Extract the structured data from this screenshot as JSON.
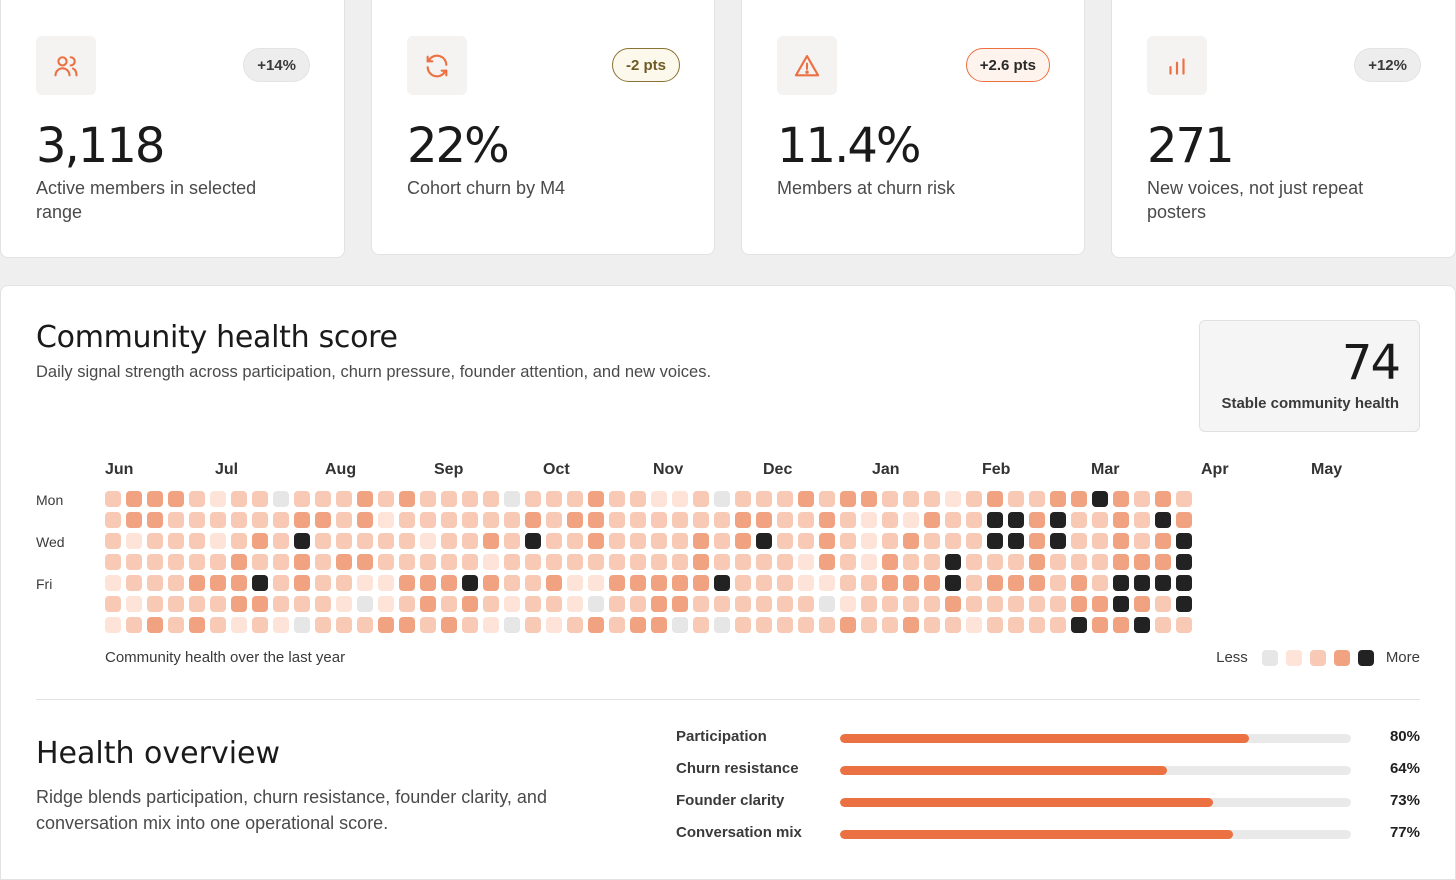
{
  "kpis": [
    {
      "icon": "users-icon",
      "badge": "+14%",
      "badge_style": "neutral",
      "value": "3,118",
      "label": "Active members in selected range"
    },
    {
      "icon": "refresh-icon",
      "badge": "-2 pts",
      "badge_style": "olive",
      "value": "22%",
      "label": "Cohort churn by M4"
    },
    {
      "icon": "warning-icon",
      "badge": "+2.6 pts",
      "badge_style": "orange",
      "value": "11.4%",
      "label": "Members at churn risk"
    },
    {
      "icon": "bar-chart-icon",
      "badge": "+12%",
      "badge_style": "neutral",
      "value": "271",
      "label": "New voices, not just repeat posters"
    }
  ],
  "health": {
    "title": "Community health score",
    "subtitle": "Daily signal strength across participation, churn pressure, founder attention, and new voices.",
    "score": "74",
    "score_label": "Stable community health",
    "months": [
      "Jun",
      "Jul",
      "Aug",
      "Sep",
      "Oct",
      "Nov",
      "Dec",
      "Jan",
      "Feb",
      "Mar",
      "Apr",
      "May"
    ],
    "days": [
      "Mon",
      "Wed",
      "Fri"
    ],
    "caption": "Community health over the last year",
    "legend_less": "Less",
    "legend_more": "More",
    "levels": [
      "#e6e6e6",
      "#fde3d8",
      "#f8c9b4",
      "#f1a281",
      "#222222"
    ],
    "weeks": [
      [
        2,
        2,
        2,
        2,
        1,
        2,
        1
      ],
      [
        3,
        3,
        1,
        2,
        2,
        1,
        2
      ],
      [
        3,
        3,
        2,
        2,
        2,
        2,
        3
      ],
      [
        3,
        2,
        2,
        2,
        2,
        2,
        2
      ],
      [
        2,
        2,
        2,
        2,
        3,
        2,
        3
      ],
      [
        1,
        2,
        1,
        2,
        3,
        2,
        2
      ],
      [
        2,
        2,
        2,
        3,
        3,
        3,
        1
      ],
      [
        2,
        2,
        3,
        2,
        4,
        3,
        2
      ],
      [
        0,
        2,
        2,
        2,
        2,
        2,
        1
      ],
      [
        2,
        3,
        4,
        3,
        3,
        2,
        0
      ],
      [
        2,
        3,
        2,
        2,
        2,
        2,
        2
      ],
      [
        2,
        2,
        2,
        3,
        2,
        1,
        2
      ],
      [
        3,
        3,
        2,
        3,
        1,
        0,
        2
      ],
      [
        2,
        1,
        2,
        2,
        1,
        1,
        3
      ],
      [
        3,
        2,
        2,
        2,
        3,
        2,
        3
      ],
      [
        2,
        2,
        1,
        2,
        3,
        3,
        2
      ],
      [
        2,
        2,
        2,
        2,
        3,
        2,
        3
      ],
      [
        2,
        2,
        2,
        2,
        4,
        3,
        2
      ],
      [
        2,
        2,
        3,
        1,
        3,
        2,
        1
      ],
      [
        0,
        2,
        2,
        2,
        2,
        1,
        0
      ],
      [
        2,
        3,
        4,
        2,
        2,
        2,
        2
      ],
      [
        2,
        2,
        2,
        2,
        3,
        2,
        1
      ],
      [
        2,
        3,
        2,
        2,
        1,
        1,
        2
      ],
      [
        3,
        3,
        3,
        2,
        1,
        0,
        3
      ],
      [
        2,
        2,
        2,
        2,
        3,
        2,
        2
      ],
      [
        2,
        2,
        2,
        2,
        3,
        2,
        3
      ],
      [
        1,
        2,
        2,
        2,
        3,
        3,
        3
      ],
      [
        1,
        2,
        2,
        2,
        3,
        3,
        0
      ],
      [
        2,
        2,
        3,
        3,
        3,
        2,
        2
      ],
      [
        0,
        2,
        2,
        2,
        4,
        2,
        0
      ],
      [
        2,
        3,
        3,
        2,
        2,
        2,
        2
      ],
      [
        2,
        3,
        4,
        2,
        2,
        2,
        2
      ],
      [
        2,
        2,
        2,
        2,
        2,
        2,
        2
      ],
      [
        3,
        2,
        2,
        1,
        1,
        2,
        2
      ],
      [
        2,
        3,
        3,
        3,
        1,
        0,
        2
      ],
      [
        3,
        2,
        2,
        2,
        2,
        1,
        3
      ],
      [
        3,
        1,
        1,
        1,
        2,
        2,
        2
      ],
      [
        2,
        2,
        2,
        3,
        3,
        2,
        2
      ],
      [
        2,
        1,
        3,
        2,
        3,
        2,
        3
      ],
      [
        2,
        3,
        2,
        2,
        3,
        2,
        2
      ],
      [
        1,
        2,
        2,
        4,
        4,
        3,
        2
      ],
      [
        2,
        2,
        2,
        2,
        2,
        2,
        1
      ],
      [
        3,
        4,
        4,
        2,
        3,
        2,
        2
      ],
      [
        2,
        4,
        4,
        2,
        3,
        2,
        2
      ],
      [
        2,
        3,
        3,
        3,
        3,
        2,
        2
      ],
      [
        3,
        4,
        4,
        2,
        2,
        2,
        2
      ],
      [
        3,
        2,
        2,
        2,
        3,
        3,
        4
      ],
      [
        4,
        2,
        2,
        2,
        2,
        3,
        3
      ],
      [
        3,
        3,
        3,
        3,
        4,
        4,
        3
      ],
      [
        2,
        2,
        2,
        3,
        4,
        3,
        4
      ],
      [
        3,
        4,
        3,
        3,
        4,
        2,
        2
      ],
      [
        2,
        3,
        4,
        4,
        4,
        4,
        2
      ]
    ]
  },
  "overview": {
    "title": "Health overview",
    "description": "Ridge blends participation, churn resistance, founder clarity, and conversation mix into one operational score.",
    "metrics": [
      {
        "label": "Participation",
        "value": 80,
        "display": "80%"
      },
      {
        "label": "Churn resistance",
        "value": 64,
        "display": "64%"
      },
      {
        "label": "Founder clarity",
        "value": 73,
        "display": "73%"
      },
      {
        "label": "Conversation mix",
        "value": 77,
        "display": "77%"
      }
    ]
  }
}
